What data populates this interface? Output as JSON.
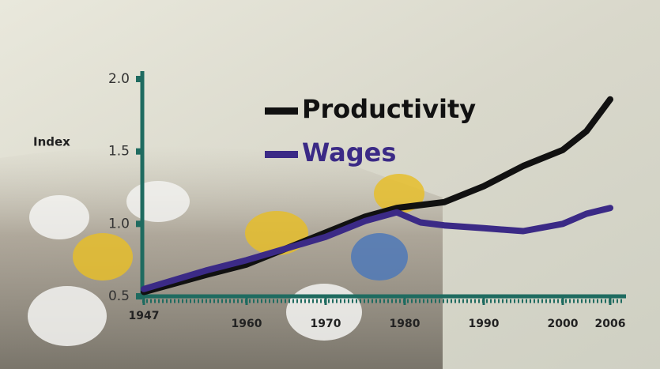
{
  "chart_data": {
    "type": "line",
    "y_label": "Index",
    "x": [
      1947,
      1955,
      1960,
      1965,
      1970,
      1975,
      1979,
      1982,
      1985,
      1990,
      1995,
      2000,
      2003,
      2006
    ],
    "series": [
      {
        "name": "Productivity",
        "color": "#111111",
        "values": [
          0.53,
          0.65,
          0.72,
          0.83,
          0.94,
          1.05,
          1.11,
          1.13,
          1.15,
          1.26,
          1.4,
          1.51,
          1.64,
          1.86
        ]
      },
      {
        "name": "Wages",
        "color": "#3b2a86",
        "values": [
          0.55,
          0.68,
          0.75,
          0.83,
          0.91,
          1.02,
          1.08,
          1.01,
          0.99,
          0.97,
          0.95,
          1.0,
          1.07,
          1.11
        ]
      }
    ],
    "xlim": [
      1947,
      2008
    ],
    "xticks": [
      1947,
      1960,
      1970,
      1980,
      1990,
      2000,
      2006
    ],
    "ylim": [
      0.5,
      2.0
    ],
    "yticks": [
      0.5,
      {
        "value": 1,
        "label": "1.0"
      },
      1.5,
      {
        "value": 2,
        "label": "2.0"
      }
    ]
  }
}
